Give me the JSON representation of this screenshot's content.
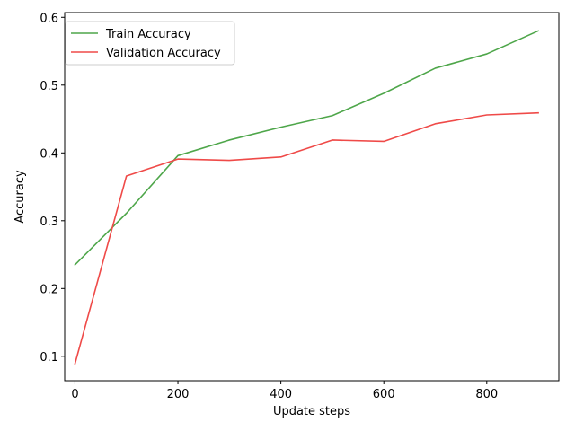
{
  "chart_data": {
    "type": "line",
    "title": "",
    "xlabel": "Update steps",
    "ylabel": "Accuracy",
    "xlim": [
      -20,
      940
    ],
    "ylim": [
      0.064,
      0.607
    ],
    "xticks": [
      0,
      200,
      400,
      600,
      800
    ],
    "xtick_labels": [
      "0",
      "200",
      "400",
      "600",
      "800"
    ],
    "yticks": [
      0.1,
      0.2,
      0.3,
      0.4,
      0.5,
      0.6
    ],
    "ytick_labels": [
      "0.1",
      "0.2",
      "0.3",
      "0.4",
      "0.5",
      "0.6"
    ],
    "grid": false,
    "legend_position": "top-left",
    "x": [
      0,
      100,
      200,
      300,
      400,
      500,
      600,
      700,
      800,
      900
    ],
    "series": [
      {
        "name": "Train Accuracy",
        "color": "#4ea64a",
        "values": [
          0.235,
          0.311,
          0.396,
          0.419,
          0.438,
          0.455,
          0.488,
          0.525,
          0.546,
          0.58
        ]
      },
      {
        "name": "Validation Accuracy",
        "color": "#ef4a48",
        "values": [
          0.089,
          0.366,
          0.391,
          0.389,
          0.394,
          0.419,
          0.417,
          0.443,
          0.456,
          0.459
        ]
      }
    ]
  }
}
